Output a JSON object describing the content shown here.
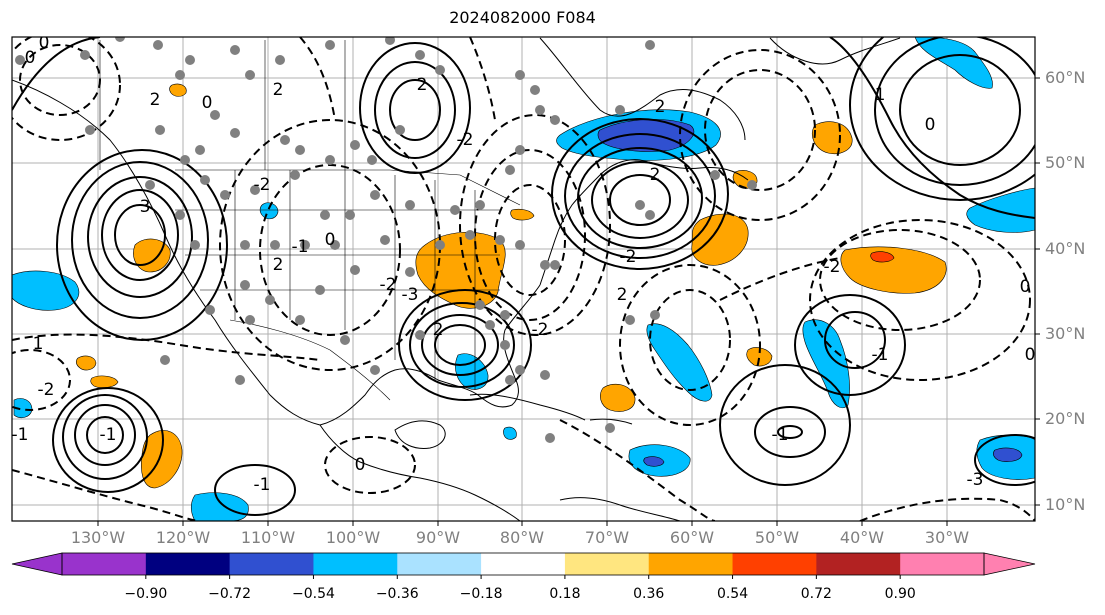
{
  "title": "2024082000 F084",
  "lat_labels": [
    "60°N",
    "50°N",
    "40°N",
    "30°N",
    "20°N",
    "10°N"
  ],
  "lon_labels": [
    "130°W",
    "120°W",
    "110°W",
    "100°W",
    "90°W",
    "80°W",
    "70°W",
    "60°W",
    "50°W",
    "40°W",
    "30°W"
  ],
  "colorbar": {
    "ticks": [
      "−0.90",
      "−0.72",
      "−0.54",
      "−0.36",
      "−0.18",
      "0.18",
      "0.36",
      "0.54",
      "0.72",
      "0.90"
    ],
    "under_color": "#9933cc",
    "colors": [
      "#9933cc",
      "#000080",
      "#3050d0",
      "#00bfff",
      "#aae2ff",
      "#ffffff",
      "#ffe680",
      "#ffa500",
      "#ff4000",
      "#b22222",
      "#ff80b0"
    ],
    "over_color": "#ff80b0"
  },
  "contour_labels": [
    "0",
    "0",
    "2",
    "2",
    "0",
    "2",
    "-2",
    "0",
    "2",
    "-2",
    "-1",
    "-3",
    "2",
    "3",
    "-2",
    "2",
    "1",
    "0",
    "-2",
    "2",
    "-1",
    "-3",
    "0",
    "0",
    "-1",
    "0",
    "-1",
    "1",
    "-2",
    "-1",
    "-1",
    "-2",
    "2",
    "-2"
  ],
  "palette": {
    "orange": "#ffa500",
    "light_blue": "#00bfff",
    "dark_blue": "#3050d0",
    "deep_blue": "#000080",
    "red": "#ff4000",
    "gray_dot": "#808080",
    "grid": "#b0b0b0"
  }
}
